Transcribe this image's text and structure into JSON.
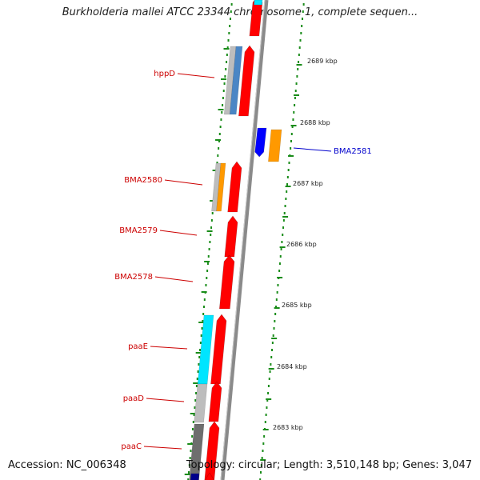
{
  "title": "Burkholderia mallei ATCC 23344 chromosome 1, complete sequen...",
  "footer": {
    "accession": "Accession: NC_006348",
    "topology": "Topology: circular; Length: 3,510,148 bp; Genes: 3,047"
  },
  "colors": {
    "backbone": "#888888",
    "ruler_dots": "#1a8c1a",
    "forward_gene": "#ff0000",
    "reverse_gene": "#0000ff",
    "label_red": "#cc0000",
    "label_blue": "#0000cc",
    "cyan_feature": "#00e5ff",
    "gray_feature": "#bdbdbd",
    "darkgray_feature": "#6e6e6e",
    "orange_feature": "#ff9900",
    "steelblue_feature": "#4a86c5"
  },
  "ticks": [
    {
      "label": "2689 kbp"
    },
    {
      "label": "2688 kbp"
    },
    {
      "label": "2687 kbp"
    },
    {
      "label": "2686 kbp"
    },
    {
      "label": "2685 kbp"
    },
    {
      "label": "2684 kbp"
    },
    {
      "label": "2683 kbp"
    }
  ],
  "genes": [
    {
      "name": "hppD",
      "strand": "left"
    },
    {
      "name": "BMA2580",
      "strand": "left"
    },
    {
      "name": "BMA2579",
      "strand": "left"
    },
    {
      "name": "BMA2578",
      "strand": "left"
    },
    {
      "name": "paaE",
      "strand": "left"
    },
    {
      "name": "paaD",
      "strand": "left"
    },
    {
      "name": "paaC",
      "strand": "left"
    },
    {
      "name": "BMA2581",
      "strand": "right"
    }
  ]
}
